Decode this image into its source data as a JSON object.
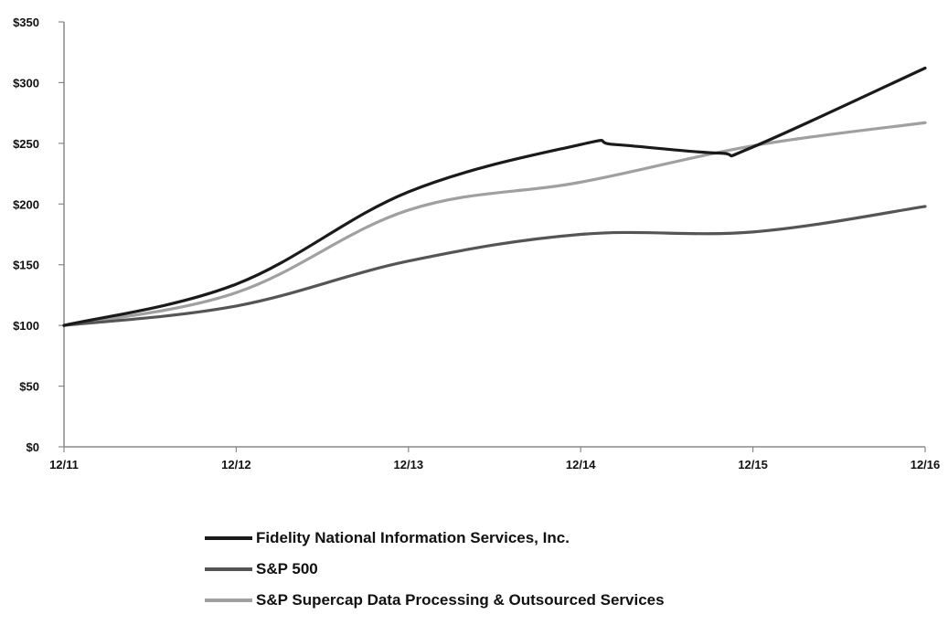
{
  "chart_data": {
    "type": "line",
    "title": "",
    "xlabel": "",
    "ylabel": "",
    "categories": [
      "12/11",
      "12/12",
      "12/13",
      "12/14",
      "12/15",
      "12/16"
    ],
    "y_ticks": [
      "$0",
      "$50",
      "$100",
      "$150",
      "$200",
      "$250",
      "$300",
      "$350"
    ],
    "ylim": [
      0,
      350
    ],
    "grid": false,
    "legend_position": "bottom",
    "series": [
      {
        "name": "Fidelity National Information Services, Inc.",
        "color": "#1a1a1a",
        "values": [
          100,
          134,
          210,
          249,
          247,
          312
        ],
        "extra_points": [
          {
            "x": 3.2,
            "y": 249
          },
          {
            "x": 3.8,
            "y": 242
          }
        ]
      },
      {
        "name": "S&P 500",
        "color": "#555555",
        "values": [
          100,
          116,
          153,
          175,
          177,
          198
        ]
      },
      {
        "name": "S&P Supercap Data Processing & Outsourced Services",
        "color": "#a0a0a0",
        "values": [
          100,
          127,
          195,
          218,
          248,
          267
        ]
      }
    ]
  }
}
